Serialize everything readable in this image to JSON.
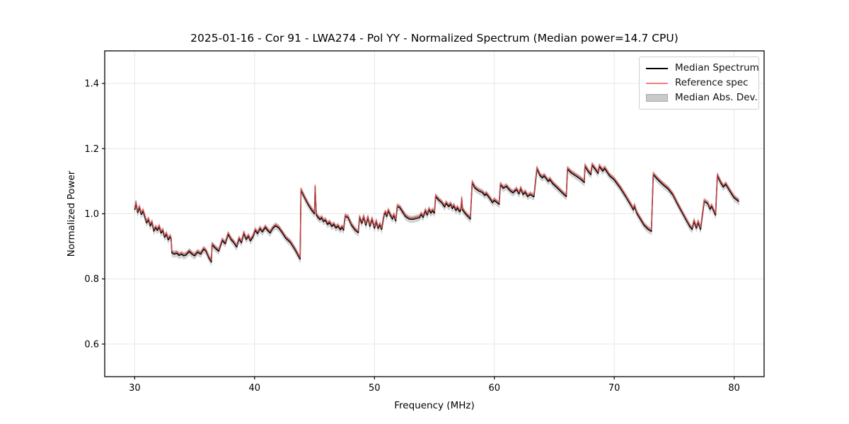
{
  "title": "2025-01-16 - Cor 91 - LWA274 - Pol YY - Normalized Spectrum (Median power=14.7 CPU)",
  "axes": {
    "x_label": "Frequency (MHz)",
    "y_label": "Normalized Power",
    "x_tick_labels": [
      "30",
      "40",
      "50",
      "60",
      "70",
      "80"
    ],
    "y_tick_labels": [
      "0.6",
      "0.8",
      "1.0",
      "1.2",
      "1.4"
    ]
  },
  "legend": {
    "items": [
      {
        "label": "Median Spectrum",
        "swatch": "line",
        "color": "#000000"
      },
      {
        "label": "Reference spec",
        "swatch": "line",
        "color": "#f08080"
      },
      {
        "label": "Median Abs. Dev.",
        "swatch": "patch",
        "color": "#c9c9c9",
        "edge_color": "#aaaaaa"
      }
    ]
  },
  "colors": {
    "median_line": "#000000",
    "reference_line": "#d94f4f",
    "mad_band": "#bdbdbd",
    "grid": "#e6e6e6",
    "frame": "#000000",
    "text": "#000000"
  },
  "chart_data": {
    "type": "line",
    "title": "2025-01-16 - Cor 91 - LWA274 - Pol YY - Normalized Spectrum (Median power=14.7 CPU)",
    "xlabel": "Frequency (MHz)",
    "ylabel": "Normalized Power",
    "xlim": [
      27.5,
      82.5
    ],
    "ylim": [
      0.5,
      1.5
    ],
    "x_ticks": [
      30,
      40,
      50,
      60,
      70,
      80
    ],
    "y_ticks": [
      0.6,
      0.8,
      1.0,
      1.2,
      1.4
    ],
    "grid": true,
    "legend_position": "upper right",
    "series": [
      {
        "name": "Median Spectrum",
        "color": "#000000",
        "width": 1.6,
        "points": [
          [
            30.0,
            1.012
          ],
          [
            30.1,
            1.033
          ],
          [
            30.25,
            1.004
          ],
          [
            30.4,
            1.019
          ],
          [
            30.55,
            0.998
          ],
          [
            30.7,
            1.008
          ],
          [
            30.85,
            0.99
          ],
          [
            31.0,
            0.972
          ],
          [
            31.15,
            0.982
          ],
          [
            31.3,
            0.963
          ],
          [
            31.45,
            0.973
          ],
          [
            31.6,
            0.947
          ],
          [
            31.75,
            0.957
          ],
          [
            31.9,
            0.949
          ],
          [
            32.05,
            0.96
          ],
          [
            32.2,
            0.941
          ],
          [
            32.35,
            0.948
          ],
          [
            32.5,
            0.928
          ],
          [
            32.65,
            0.937
          ],
          [
            32.8,
            0.92
          ],
          [
            32.95,
            0.929
          ],
          [
            33.05,
            0.921
          ],
          [
            33.1,
            0.88
          ],
          [
            33.3,
            0.876
          ],
          [
            33.5,
            0.879
          ],
          [
            33.7,
            0.872
          ],
          [
            33.9,
            0.876
          ],
          [
            34.1,
            0.871
          ],
          [
            34.3,
            0.874
          ],
          [
            34.55,
            0.884
          ],
          [
            34.8,
            0.875
          ],
          [
            35.0,
            0.871
          ],
          [
            35.25,
            0.882
          ],
          [
            35.5,
            0.876
          ],
          [
            35.75,
            0.891
          ],
          [
            35.95,
            0.885
          ],
          [
            36.2,
            0.864
          ],
          [
            36.4,
            0.852
          ],
          [
            36.45,
            0.905
          ],
          [
            36.7,
            0.895
          ],
          [
            37.0,
            0.885
          ],
          [
            37.3,
            0.918
          ],
          [
            37.55,
            0.908
          ],
          [
            37.8,
            0.937
          ],
          [
            38.05,
            0.92
          ],
          [
            38.25,
            0.912
          ],
          [
            38.5,
            0.898
          ],
          [
            38.7,
            0.923
          ],
          [
            38.9,
            0.911
          ],
          [
            39.1,
            0.94
          ],
          [
            39.3,
            0.921
          ],
          [
            39.5,
            0.931
          ],
          [
            39.65,
            0.917
          ],
          [
            39.85,
            0.928
          ],
          [
            40.05,
            0.949
          ],
          [
            40.25,
            0.939
          ],
          [
            40.45,
            0.954
          ],
          [
            40.65,
            0.944
          ],
          [
            40.9,
            0.958
          ],
          [
            41.1,
            0.948
          ],
          [
            41.3,
            0.941
          ],
          [
            41.5,
            0.954
          ],
          [
            41.75,
            0.963
          ],
          [
            42.0,
            0.957
          ],
          [
            42.3,
            0.942
          ],
          [
            42.6,
            0.925
          ],
          [
            43.0,
            0.911
          ],
          [
            43.4,
            0.888
          ],
          [
            43.8,
            0.861
          ],
          [
            43.87,
            1.072
          ],
          [
            44.2,
            1.047
          ],
          [
            44.5,
            1.026
          ],
          [
            44.8,
            1.009
          ],
          [
            45.0,
            1.0
          ],
          [
            45.05,
            1.082
          ],
          [
            45.15,
            0.996
          ],
          [
            45.3,
            0.988
          ],
          [
            45.45,
            0.982
          ],
          [
            45.6,
            0.987
          ],
          [
            45.75,
            0.976
          ],
          [
            45.9,
            0.98
          ],
          [
            46.1,
            0.967
          ],
          [
            46.25,
            0.973
          ],
          [
            46.45,
            0.961
          ],
          [
            46.6,
            0.967
          ],
          [
            46.8,
            0.956
          ],
          [
            46.95,
            0.962
          ],
          [
            47.15,
            0.951
          ],
          [
            47.3,
            0.958
          ],
          [
            47.42,
            0.95
          ],
          [
            47.55,
            0.992
          ],
          [
            47.8,
            0.988
          ],
          [
            48.1,
            0.964
          ],
          [
            48.4,
            0.949
          ],
          [
            48.65,
            0.942
          ],
          [
            48.75,
            0.988
          ],
          [
            48.95,
            0.971
          ],
          [
            49.1,
            0.99
          ],
          [
            49.28,
            0.965
          ],
          [
            49.45,
            0.988
          ],
          [
            49.62,
            0.962
          ],
          [
            49.8,
            0.983
          ],
          [
            50.0,
            0.956
          ],
          [
            50.15,
            0.976
          ],
          [
            50.3,
            0.955
          ],
          [
            50.45,
            0.966
          ],
          [
            50.6,
            0.952
          ],
          [
            50.8,
            0.996
          ],
          [
            50.92,
            1.003
          ],
          [
            51.02,
            0.992
          ],
          [
            51.15,
            1.009
          ],
          [
            51.35,
            0.994
          ],
          [
            51.5,
            0.984
          ],
          [
            51.62,
            0.995
          ],
          [
            51.78,
            0.978
          ],
          [
            51.9,
            1.022
          ],
          [
            52.1,
            1.019
          ],
          [
            52.35,
            1.005
          ],
          [
            52.6,
            0.991
          ],
          [
            52.9,
            0.984
          ],
          [
            53.2,
            0.983
          ],
          [
            53.5,
            0.986
          ],
          [
            53.75,
            0.988
          ],
          [
            53.9,
            0.998
          ],
          [
            54.05,
            0.989
          ],
          [
            54.25,
            1.009
          ],
          [
            54.4,
            0.996
          ],
          [
            54.55,
            1.013
          ],
          [
            54.7,
            1.002
          ],
          [
            54.85,
            1.009
          ],
          [
            55.0,
            1.002
          ],
          [
            55.1,
            1.053
          ],
          [
            55.35,
            1.042
          ],
          [
            55.6,
            1.034
          ],
          [
            55.85,
            1.021
          ],
          [
            55.97,
            1.032
          ],
          [
            56.2,
            1.022
          ],
          [
            56.35,
            1.029
          ],
          [
            56.5,
            1.016
          ],
          [
            56.62,
            1.024
          ],
          [
            56.8,
            1.01
          ],
          [
            56.92,
            1.018
          ],
          [
            57.1,
            1.006
          ],
          [
            57.2,
            1.011
          ],
          [
            57.28,
            1.046
          ],
          [
            57.35,
            1.012
          ],
          [
            57.6,
            0.999
          ],
          [
            58.0,
            0.984
          ],
          [
            58.15,
            1.095
          ],
          [
            58.4,
            1.078
          ],
          [
            58.7,
            1.07
          ],
          [
            59.0,
            1.065
          ],
          [
            59.2,
            1.056
          ],
          [
            59.32,
            1.061
          ],
          [
            59.6,
            1.048
          ],
          [
            59.85,
            1.034
          ],
          [
            60.0,
            1.041
          ],
          [
            60.2,
            1.035
          ],
          [
            60.4,
            1.029
          ],
          [
            60.5,
            1.089
          ],
          [
            60.75,
            1.078
          ],
          [
            61.0,
            1.084
          ],
          [
            61.3,
            1.071
          ],
          [
            61.55,
            1.064
          ],
          [
            61.85,
            1.074
          ],
          [
            62.05,
            1.061
          ],
          [
            62.2,
            1.077
          ],
          [
            62.4,
            1.059
          ],
          [
            62.57,
            1.066
          ],
          [
            62.78,
            1.053
          ],
          [
            63.0,
            1.059
          ],
          [
            63.3,
            1.052
          ],
          [
            63.55,
            1.138
          ],
          [
            63.8,
            1.118
          ],
          [
            64.0,
            1.11
          ],
          [
            64.15,
            1.116
          ],
          [
            64.5,
            1.099
          ],
          [
            64.62,
            1.105
          ],
          [
            64.9,
            1.091
          ],
          [
            65.2,
            1.081
          ],
          [
            65.5,
            1.07
          ],
          [
            65.8,
            1.059
          ],
          [
            66.0,
            1.053
          ],
          [
            66.1,
            1.137
          ],
          [
            66.4,
            1.126
          ],
          [
            66.8,
            1.116
          ],
          [
            67.2,
            1.106
          ],
          [
            67.5,
            1.096
          ],
          [
            67.56,
            1.146
          ],
          [
            67.8,
            1.131
          ],
          [
            68.05,
            1.12
          ],
          [
            68.15,
            1.149
          ],
          [
            68.4,
            1.137
          ],
          [
            68.65,
            1.124
          ],
          [
            68.75,
            1.145
          ],
          [
            69.05,
            1.131
          ],
          [
            69.2,
            1.139
          ],
          [
            69.6,
            1.117
          ],
          [
            70.0,
            1.104
          ],
          [
            70.5,
            1.079
          ],
          [
            71.0,
            1.05
          ],
          [
            71.45,
            1.022
          ],
          [
            71.6,
            1.012
          ],
          [
            71.68,
            1.024
          ],
          [
            71.9,
            1.0
          ],
          [
            72.2,
            0.982
          ],
          [
            72.5,
            0.964
          ],
          [
            72.8,
            0.953
          ],
          [
            73.1,
            0.946
          ],
          [
            73.25,
            1.12
          ],
          [
            73.7,
            1.102
          ],
          [
            74.1,
            1.088
          ],
          [
            74.5,
            1.076
          ],
          [
            74.9,
            1.057
          ],
          [
            75.3,
            1.028
          ],
          [
            75.8,
            0.994
          ],
          [
            76.3,
            0.961
          ],
          [
            76.5,
            0.952
          ],
          [
            76.65,
            0.977
          ],
          [
            76.85,
            0.956
          ],
          [
            77.0,
            0.974
          ],
          [
            77.2,
            0.952
          ],
          [
            77.5,
            1.038
          ],
          [
            77.8,
            1.031
          ],
          [
            78.0,
            1.014
          ],
          [
            78.12,
            1.023
          ],
          [
            78.45,
            0.996
          ],
          [
            78.6,
            1.117
          ],
          [
            78.9,
            1.094
          ],
          [
            79.1,
            1.082
          ],
          [
            79.3,
            1.09
          ],
          [
            79.7,
            1.066
          ],
          [
            80.0,
            1.049
          ],
          [
            80.4,
            1.037
          ]
        ]
      },
      {
        "name": "Reference spec",
        "color": "#d94f4f",
        "width": 1.5,
        "opacity": 0.92,
        "derived_from": "Median Spectrum",
        "value_offset": 0.005
      },
      {
        "name": "Median Abs. Dev.",
        "band": true,
        "color": "#bdbdbd",
        "opacity": 0.6,
        "derived_from": "Median Spectrum",
        "half_width": 0.01
      }
    ]
  }
}
